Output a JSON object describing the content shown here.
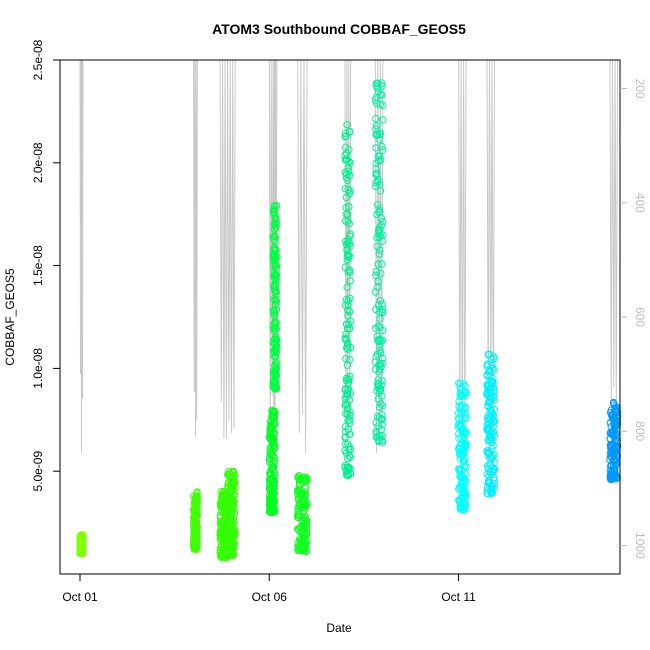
{
  "chart_data": {
    "type": "scatter",
    "title": "ATOM3 Southbound COBBAF_GEOS5",
    "xlabel": "Date",
    "ylabel": "COBBAF_GEOS5",
    "x_range_days": [
      0.0,
      14.0
    ],
    "x_tick_positions": [
      0,
      5,
      10
    ],
    "x_tick_labels": [
      "Oct 01",
      "Oct 06",
      "Oct 11"
    ],
    "ylim": [
      0,
      2.5e-08
    ],
    "y_tick_values": [
      5e-09,
      1e-08,
      1.5e-08,
      2e-08,
      2.5e-08
    ],
    "y_tick_labels": [
      "5.0e-09",
      "1.0e-08",
      "1.5e-08",
      "2.0e-08",
      "2.5e-08"
    ],
    "right_axis": {
      "label": "",
      "reversed": true,
      "range": [
        150,
        1050
      ],
      "tick_values": [
        200,
        400,
        600,
        800,
        1000
      ],
      "tick_labels": [
        "200",
        "400",
        "600",
        "800",
        "1000"
      ],
      "color": "#bdbdbd"
    },
    "pressure_trace_color": "#c8c8c8",
    "marker": "open-circle",
    "segments": [
      {
        "x0": 0.0,
        "x1": 0.08,
        "ymin": 1e-09,
        "ymax": 1.9e-09,
        "color": "#80ff00"
      },
      {
        "x0": 3.0,
        "x1": 3.1,
        "ymin": 1.2e-09,
        "ymax": 4e-09,
        "color": "#40ff00"
      },
      {
        "x0": 3.7,
        "x1": 3.9,
        "ymin": 8e-10,
        "ymax": 4.1e-09,
        "color": "#33ff00"
      },
      {
        "x0": 3.9,
        "x1": 4.1,
        "ymin": 9e-10,
        "ymax": 5e-09,
        "color": "#33ff00"
      },
      {
        "x0": 5.0,
        "x1": 5.15,
        "ymin": 3e-09,
        "ymax": 8e-09,
        "color": "#00ff20"
      },
      {
        "x0": 5.1,
        "x1": 5.2,
        "ymin": 9e-09,
        "ymax": 1.8e-08,
        "color": "#00ff40"
      },
      {
        "x0": 5.75,
        "x1": 6.0,
        "ymin": 1.1e-09,
        "ymax": 4.8e-09,
        "color": "#10ff20"
      },
      {
        "x0": 7.0,
        "x1": 7.15,
        "ymin": 4.8e-09,
        "ymax": 2.2e-08,
        "color": "#00f090"
      },
      {
        "x0": 7.8,
        "x1": 8.0,
        "ymin": 6.4e-09,
        "ymax": 2.42e-08,
        "color": "#00f0a0"
      },
      {
        "x0": 10.0,
        "x1": 10.2,
        "ymin": 3.1e-09,
        "ymax": 9.3e-09,
        "color": "#00ffff"
      },
      {
        "x0": 10.75,
        "x1": 10.95,
        "ymin": 3.9e-09,
        "ymax": 1.08e-08,
        "color": "#00f0ff"
      },
      {
        "x0": 14.0,
        "x1": 14.2,
        "ymin": 4.6e-09,
        "ymax": 8.4e-09,
        "color": "#0099ff"
      }
    ]
  }
}
